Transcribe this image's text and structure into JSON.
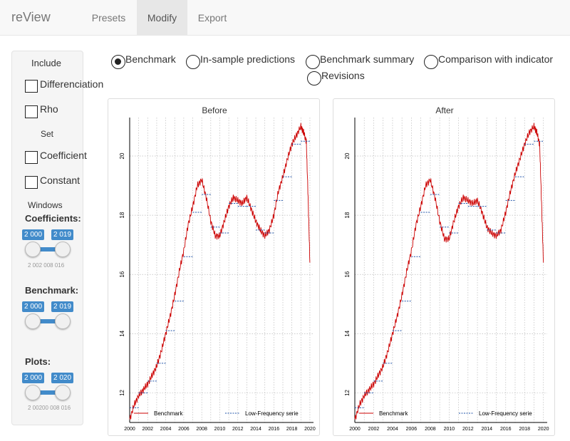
{
  "navbar": {
    "brand": "reView",
    "tabs": [
      {
        "label": "Presets",
        "active": false
      },
      {
        "label": "Modify",
        "active": true
      },
      {
        "label": "Export",
        "active": false
      }
    ]
  },
  "sidebar": {
    "include_header": "Include",
    "differenciation_label": "Differenciation",
    "rho_label": "Rho",
    "set_header": "Set",
    "coefficient_label": "Coefficient",
    "constant_label": "Constant",
    "windows_header": "Windows",
    "sliders": [
      {
        "label": "Coefficients:",
        "from": "2 000",
        "to": "2 019",
        "ticks": "2 002 008 016"
      },
      {
        "label": "Benchmark:",
        "from": "2 000",
        "to": "2 019",
        "ticks": ""
      },
      {
        "label": "Plots:",
        "from": "2 000",
        "to": "2 020",
        "ticks": "2 00200 008 016"
      }
    ]
  },
  "radios": [
    {
      "label": "Benchmark",
      "checked": true
    },
    {
      "label": "In-sample predictions",
      "checked": false
    },
    {
      "label": "Benchmark summary",
      "checked": false
    },
    {
      "label": "Comparison with indicator",
      "checked": false
    },
    {
      "label": "Revisions",
      "checked": false
    }
  ],
  "colors": {
    "benchmark": "#cc0000",
    "low_frequency": "#2255aa",
    "accent": "#428bca"
  },
  "chart_data": [
    {
      "type": "line",
      "title": "Before",
      "x_ticks": [
        "2000",
        "2002",
        "2004",
        "2006",
        "2008",
        "2010",
        "2012",
        "2014",
        "2016",
        "2018",
        "2020"
      ],
      "y_ticks": [
        "12",
        "14",
        "16",
        "18",
        "20"
      ],
      "xlim": [
        2000,
        2020.4
      ],
      "ylim": [
        11.0,
        21.3
      ],
      "legend": [
        "Benchmark",
        "Low-Frequency serie"
      ],
      "series": [
        {
          "name": "Benchmark",
          "x": [
            2000.0,
            2000.5,
            2001.0,
            2001.5,
            2002.0,
            2002.5,
            2003.0,
            2003.5,
            2004.0,
            2004.5,
            2005.0,
            2005.5,
            2006.0,
            2006.5,
            2007.0,
            2007.5,
            2008.0,
            2008.5,
            2009.0,
            2009.5,
            2010.0,
            2010.5,
            2011.0,
            2011.5,
            2012.0,
            2012.5,
            2013.0,
            2013.5,
            2014.0,
            2014.5,
            2015.0,
            2015.5,
            2016.0,
            2016.5,
            2017.0,
            2017.5,
            2018.0,
            2018.5,
            2019.0,
            2019.3,
            2019.6,
            2019.8,
            2020.0
          ],
          "y": [
            11.1,
            11.6,
            11.9,
            12.1,
            12.3,
            12.6,
            12.9,
            13.4,
            14.0,
            14.6,
            15.3,
            16.1,
            16.8,
            17.7,
            18.3,
            19.0,
            19.2,
            18.6,
            17.8,
            17.3,
            17.3,
            17.8,
            18.3,
            18.6,
            18.5,
            18.4,
            18.6,
            18.2,
            17.8,
            17.5,
            17.3,
            17.5,
            18.0,
            18.8,
            19.3,
            19.9,
            20.4,
            20.7,
            21.0,
            20.8,
            20.5,
            18.6,
            16.4
          ]
        },
        {
          "name": "Low-Frequency serie",
          "x": [
            2000.5,
            2001.5,
            2002.5,
            2003.5,
            2004.5,
            2005.5,
            2006.5,
            2007.5,
            2008.5,
            2009.5,
            2010.5,
            2011.5,
            2012.5,
            2013.5,
            2014.5,
            2015.5,
            2016.5,
            2017.5,
            2018.5,
            2019.5
          ],
          "y": [
            11.5,
            12.0,
            12.4,
            13.0,
            14.1,
            15.1,
            16.6,
            18.1,
            18.7,
            17.6,
            17.4,
            18.4,
            18.3,
            18.3,
            17.5,
            17.4,
            18.5,
            19.3,
            20.4,
            20.5
          ]
        }
      ]
    },
    {
      "type": "line",
      "title": "After",
      "x_ticks": [
        "2000",
        "2002",
        "2004",
        "2006",
        "2008",
        "2010",
        "2012",
        "2014",
        "2016",
        "2018",
        "2020"
      ],
      "y_ticks": [
        "12",
        "14",
        "16",
        "18",
        "20"
      ],
      "xlim": [
        2000,
        2020.4
      ],
      "ylim": [
        11.0,
        21.3
      ],
      "legend": [
        "Benchmark",
        "Low-Frequency serie"
      ],
      "series": [
        {
          "name": "Benchmark",
          "x": [
            2000.0,
            2000.5,
            2001.0,
            2001.5,
            2002.0,
            2002.5,
            2003.0,
            2003.5,
            2004.0,
            2004.5,
            2005.0,
            2005.5,
            2006.0,
            2006.5,
            2007.0,
            2007.5,
            2008.0,
            2008.5,
            2009.0,
            2009.5,
            2010.0,
            2010.5,
            2011.0,
            2011.5,
            2012.0,
            2012.5,
            2013.0,
            2013.5,
            2014.0,
            2014.5,
            2015.0,
            2015.5,
            2016.0,
            2016.5,
            2017.0,
            2017.5,
            2018.0,
            2018.5,
            2019.0,
            2019.3,
            2019.6,
            2019.8,
            2020.0
          ],
          "y": [
            11.1,
            11.6,
            11.9,
            12.1,
            12.3,
            12.6,
            12.9,
            13.4,
            14.0,
            14.6,
            15.3,
            16.1,
            16.8,
            17.7,
            18.3,
            19.0,
            19.2,
            18.6,
            17.8,
            17.2,
            17.2,
            17.8,
            18.3,
            18.6,
            18.5,
            18.4,
            18.5,
            18.1,
            17.6,
            17.4,
            17.3,
            17.5,
            18.1,
            18.8,
            19.4,
            19.9,
            20.4,
            20.8,
            21.0,
            20.8,
            20.4,
            18.4,
            16.4
          ]
        },
        {
          "name": "Low-Frequency serie",
          "x": [
            2000.5,
            2001.5,
            2002.5,
            2003.5,
            2004.5,
            2005.5,
            2006.5,
            2007.5,
            2008.5,
            2009.5,
            2010.5,
            2011.5,
            2012.5,
            2013.5,
            2014.5,
            2015.5,
            2016.5,
            2017.5,
            2018.5,
            2019.5
          ],
          "y": [
            11.5,
            12.0,
            12.4,
            13.0,
            14.1,
            15.1,
            16.6,
            18.1,
            18.7,
            17.6,
            17.4,
            18.4,
            18.3,
            18.3,
            17.5,
            17.4,
            18.5,
            19.3,
            20.4,
            20.5
          ]
        }
      ]
    }
  ]
}
